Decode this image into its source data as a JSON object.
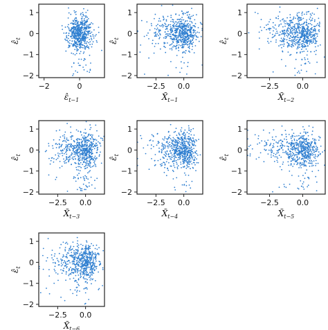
{
  "point_color": "#2f7fd0",
  "chart_data": [
    {
      "type": "scatter",
      "xlabel": "ε̂",
      "xlabel_sub": "t−1",
      "ylabel": "ε̂",
      "ylabel_sub": "t",
      "xlim": [
        -2.3,
        1.4
      ],
      "ylim": [
        -2.1,
        1.4
      ],
      "xticks": [
        -2,
        0
      ],
      "xtick_labels": [
        "−2",
        "0"
      ],
      "yticks": [
        -2,
        -1,
        0,
        1
      ],
      "ytick_labels": [
        "−2",
        "−1",
        "0",
        "1"
      ],
      "center_x": 0.0,
      "spread_x": 0.35,
      "seed": 11,
      "n": 600
    },
    {
      "type": "scatter",
      "xlabel": "X̃",
      "xlabel_sub": "t−1",
      "ylabel": "ε̂",
      "ylabel_sub": "t",
      "xlim": [
        -4.2,
        1.7
      ],
      "ylim": [
        -2.1,
        1.4
      ],
      "xticks": [
        -2.5,
        0.0
      ],
      "xtick_labels": [
        "−2.5",
        "0.0"
      ],
      "yticks": [
        -2,
        -1,
        0,
        1
      ],
      "ytick_labels": [
        "−2",
        "−1",
        "0",
        "1"
      ],
      "center_x": 0.2,
      "spread_x": 1.0,
      "seed": 23,
      "n": 600
    },
    {
      "type": "scatter",
      "xlabel": "X̃",
      "xlabel_sub": "t−2",
      "ylabel": "ε̂",
      "ylabel_sub": "t",
      "xlim": [
        -4.2,
        1.7
      ],
      "ylim": [
        -2.1,
        1.4
      ],
      "xticks": [
        -2.5,
        0.0
      ],
      "xtick_labels": [
        "−2.5",
        "0.0"
      ],
      "yticks": [
        -2,
        -1,
        0,
        1
      ],
      "ytick_labels": [
        "−2",
        "−1",
        "0",
        "1"
      ],
      "center_x": 0.2,
      "spread_x": 1.0,
      "seed": 37,
      "n": 600
    },
    {
      "type": "scatter",
      "xlabel": "X̃",
      "xlabel_sub": "t−3",
      "ylabel": "ε̂",
      "ylabel_sub": "t",
      "xlim": [
        -4.2,
        1.7
      ],
      "ylim": [
        -2.1,
        1.4
      ],
      "xticks": [
        -2.5,
        0.0
      ],
      "xtick_labels": [
        "−2.5",
        "0.0"
      ],
      "yticks": [
        -2,
        -1,
        0,
        1
      ],
      "ytick_labels": [
        "−2",
        "−1",
        "0",
        "1"
      ],
      "center_x": 0.2,
      "spread_x": 1.0,
      "seed": 41,
      "n": 600
    },
    {
      "type": "scatter",
      "xlabel": "X̃",
      "xlabel_sub": "t−4",
      "ylabel": "ε̂",
      "ylabel_sub": "t",
      "xlim": [
        -4.2,
        1.7
      ],
      "ylim": [
        -2.1,
        1.4
      ],
      "xticks": [
        -2.5,
        0.0
      ],
      "xtick_labels": [
        "−2.5",
        "0.0"
      ],
      "yticks": [
        -2,
        -1,
        0,
        1
      ],
      "ytick_labels": [
        "−2",
        "−1",
        "0",
        "1"
      ],
      "center_x": 0.2,
      "spread_x": 1.0,
      "seed": 53,
      "n": 600
    },
    {
      "type": "scatter",
      "xlabel": "X̃",
      "xlabel_sub": "t−5",
      "ylabel": "ε̂",
      "ylabel_sub": "t",
      "xlim": [
        -4.2,
        1.7
      ],
      "ylim": [
        -2.1,
        1.4
      ],
      "xticks": [
        -2.5,
        0.0
      ],
      "xtick_labels": [
        "−2.5",
        "0.0"
      ],
      "yticks": [
        -2,
        -1,
        0,
        1
      ],
      "ytick_labels": [
        "−2",
        "−1",
        "0",
        "1"
      ],
      "center_x": 0.2,
      "spread_x": 1.0,
      "seed": 67,
      "n": 600
    },
    {
      "type": "scatter",
      "xlabel": "X̃",
      "xlabel_sub": "t−6",
      "ylabel": "ε̂",
      "ylabel_sub": "t",
      "xlim": [
        -4.2,
        1.7
      ],
      "ylim": [
        -2.1,
        1.4
      ],
      "xticks": [
        -2.5,
        0.0
      ],
      "xtick_labels": [
        "−2.5",
        "0.0"
      ],
      "yticks": [
        -2,
        -1,
        0,
        1
      ],
      "ytick_labels": [
        "−2",
        "−1",
        "0",
        "1"
      ],
      "center_x": 0.2,
      "spread_x": 1.0,
      "seed": 79,
      "n": 600
    }
  ]
}
